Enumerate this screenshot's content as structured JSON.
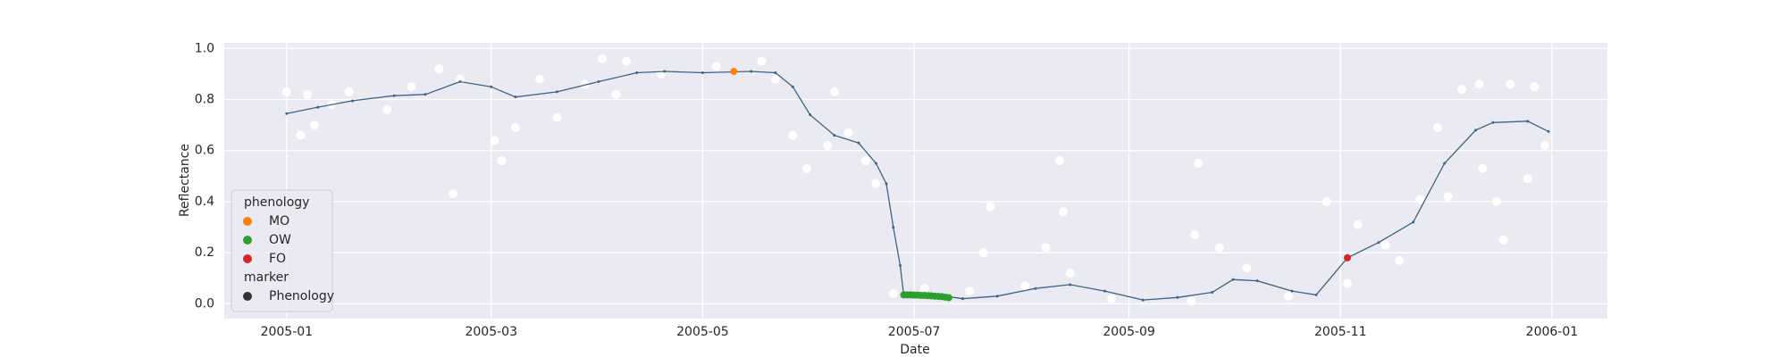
{
  "chart_data": {
    "type": "line",
    "xlabel": "Date",
    "ylabel": "Reflectance",
    "xlim": [
      "2004-12-14",
      "2006-01-17"
    ],
    "ylim": [
      -0.058,
      1.022
    ],
    "xticks": [
      {
        "value": "2005-01-01",
        "label": "2005-01"
      },
      {
        "value": "2005-03-01",
        "label": "2005-03"
      },
      {
        "value": "2005-05-01",
        "label": "2005-05"
      },
      {
        "value": "2005-07-01",
        "label": "2005-07"
      },
      {
        "value": "2005-09-01",
        "label": "2005-09"
      },
      {
        "value": "2005-11-01",
        "label": "2005-11"
      },
      {
        "value": "2006-01-01",
        "label": "2006-01"
      }
    ],
    "yticks": [
      {
        "value": 0,
        "label": "0.0"
      },
      {
        "value": 0.2,
        "label": "0.2"
      },
      {
        "value": 0.4,
        "label": "0.4"
      },
      {
        "value": 0.6,
        "label": "0.6"
      },
      {
        "value": 0.8,
        "label": "0.8"
      },
      {
        "value": 1,
        "label": "1.0"
      }
    ],
    "grid": true,
    "legend": "lower left",
    "observations": {
      "color": "#ffffff",
      "x": [
        "2005-01-01",
        "2005-01-05",
        "2005-01-07",
        "2005-01-09",
        "2005-01-14",
        "2005-01-19",
        "2005-01-30",
        "2005-02-06",
        "2005-02-14",
        "2005-02-18",
        "2005-02-20",
        "2005-03-02",
        "2005-03-04",
        "2005-03-08",
        "2005-03-15",
        "2005-03-20",
        "2005-03-28",
        "2005-04-02",
        "2005-04-06",
        "2005-04-09",
        "2005-04-19",
        "2005-05-05",
        "2005-05-18",
        "2005-05-22",
        "2005-05-27",
        "2005-05-31",
        "2005-06-06",
        "2005-06-08",
        "2005-06-12",
        "2005-06-17",
        "2005-06-20",
        "2005-06-25",
        "2005-07-04",
        "2005-07-17",
        "2005-07-21",
        "2005-07-23",
        "2005-08-02",
        "2005-08-08",
        "2005-08-12",
        "2005-08-13",
        "2005-08-15",
        "2005-08-27",
        "2005-09-19",
        "2005-09-20",
        "2005-09-21",
        "2005-09-27",
        "2005-10-05",
        "2005-10-17",
        "2005-10-28",
        "2005-11-03",
        "2005-11-06",
        "2005-11-14",
        "2005-11-18",
        "2005-11-24",
        "2005-11-29",
        "2005-12-02",
        "2005-12-06",
        "2005-12-11",
        "2005-12-12",
        "2005-12-16",
        "2005-12-18",
        "2005-12-20",
        "2005-12-25",
        "2005-12-27",
        "2005-12-30"
      ],
      "values": [
        0.83,
        0.66,
        0.82,
        0.7,
        0.78,
        0.83,
        0.76,
        0.85,
        0.92,
        0.43,
        0.88,
        0.64,
        0.56,
        0.69,
        0.88,
        0.73,
        0.86,
        0.96,
        0.82,
        0.95,
        0.9,
        0.93,
        0.95,
        0.88,
        0.66,
        0.53,
        0.62,
        0.83,
        0.67,
        0.56,
        0.47,
        0.04,
        0.06,
        0.05,
        0.2,
        0.38,
        0.07,
        0.22,
        0.56,
        0.36,
        0.12,
        0.02,
        0.01,
        0.27,
        0.55,
        0.22,
        0.14,
        0.03,
        0.4,
        0.08,
        0.31,
        0.23,
        0.17,
        0.41,
        0.69,
        0.42,
        0.84,
        0.86,
        0.53,
        0.4,
        0.25,
        0.86,
        0.49,
        0.85,
        0.62
      ]
    },
    "line": {
      "color": "#3b6584",
      "x": [
        "2005-01-01",
        "2005-01-10",
        "2005-01-20",
        "2005-02-01",
        "2005-02-10",
        "2005-02-20",
        "2005-03-01",
        "2005-03-08",
        "2005-03-20",
        "2005-04-01",
        "2005-04-12",
        "2005-04-20",
        "2005-05-01",
        "2005-05-15",
        "2005-05-22",
        "2005-05-27",
        "2005-06-01",
        "2005-06-08",
        "2005-06-15",
        "2005-06-20",
        "2005-06-23",
        "2005-06-25",
        "2005-06-27",
        "2005-06-28",
        "2005-07-10",
        "2005-07-15",
        "2005-07-25",
        "2005-08-05",
        "2005-08-15",
        "2005-08-25",
        "2005-09-05",
        "2005-09-15",
        "2005-09-25",
        "2005-10-01",
        "2005-10-08",
        "2005-10-18",
        "2005-10-25",
        "2005-11-03",
        "2005-11-12",
        "2005-11-22",
        "2005-12-01",
        "2005-12-10",
        "2005-12-15",
        "2005-12-25",
        "2005-12-31"
      ],
      "values": [
        0.745,
        0.77,
        0.795,
        0.815,
        0.82,
        0.87,
        0.85,
        0.81,
        0.83,
        0.87,
        0.905,
        0.91,
        0.905,
        0.91,
        0.905,
        0.85,
        0.74,
        0.66,
        0.63,
        0.55,
        0.47,
        0.3,
        0.15,
        0.035,
        0.03,
        0.02,
        0.03,
        0.06,
        0.075,
        0.05,
        0.015,
        0.025,
        0.045,
        0.095,
        0.09,
        0.05,
        0.035,
        0.18,
        0.24,
        0.32,
        0.55,
        0.68,
        0.71,
        0.715,
        0.675
      ]
    },
    "phenology": {
      "title": "phenology",
      "series": [
        {
          "name": "MO",
          "color": "#ff7f0e",
          "x": [
            "2005-05-10"
          ],
          "values": [
            0.91
          ]
        },
        {
          "name": "OW",
          "color": "#2ca02c",
          "x": [
            "2005-06-28",
            "2005-06-29",
            "2005-06-30",
            "2005-07-01",
            "2005-07-02",
            "2005-07-03",
            "2005-07-04",
            "2005-07-05",
            "2005-07-06",
            "2005-07-07",
            "2005-07-08",
            "2005-07-09",
            "2005-07-10",
            "2005-07-11"
          ],
          "values": [
            0.035,
            0.035,
            0.035,
            0.034,
            0.034,
            0.033,
            0.033,
            0.032,
            0.031,
            0.03,
            0.029,
            0.028,
            0.026,
            0.024
          ]
        },
        {
          "name": "FO",
          "color": "#d62728",
          "x": [
            "2005-11-03"
          ],
          "values": [
            0.18
          ]
        }
      ]
    },
    "marker": {
      "title": "marker",
      "series": [
        {
          "name": "Phenology",
          "color": "#333333"
        }
      ]
    }
  }
}
